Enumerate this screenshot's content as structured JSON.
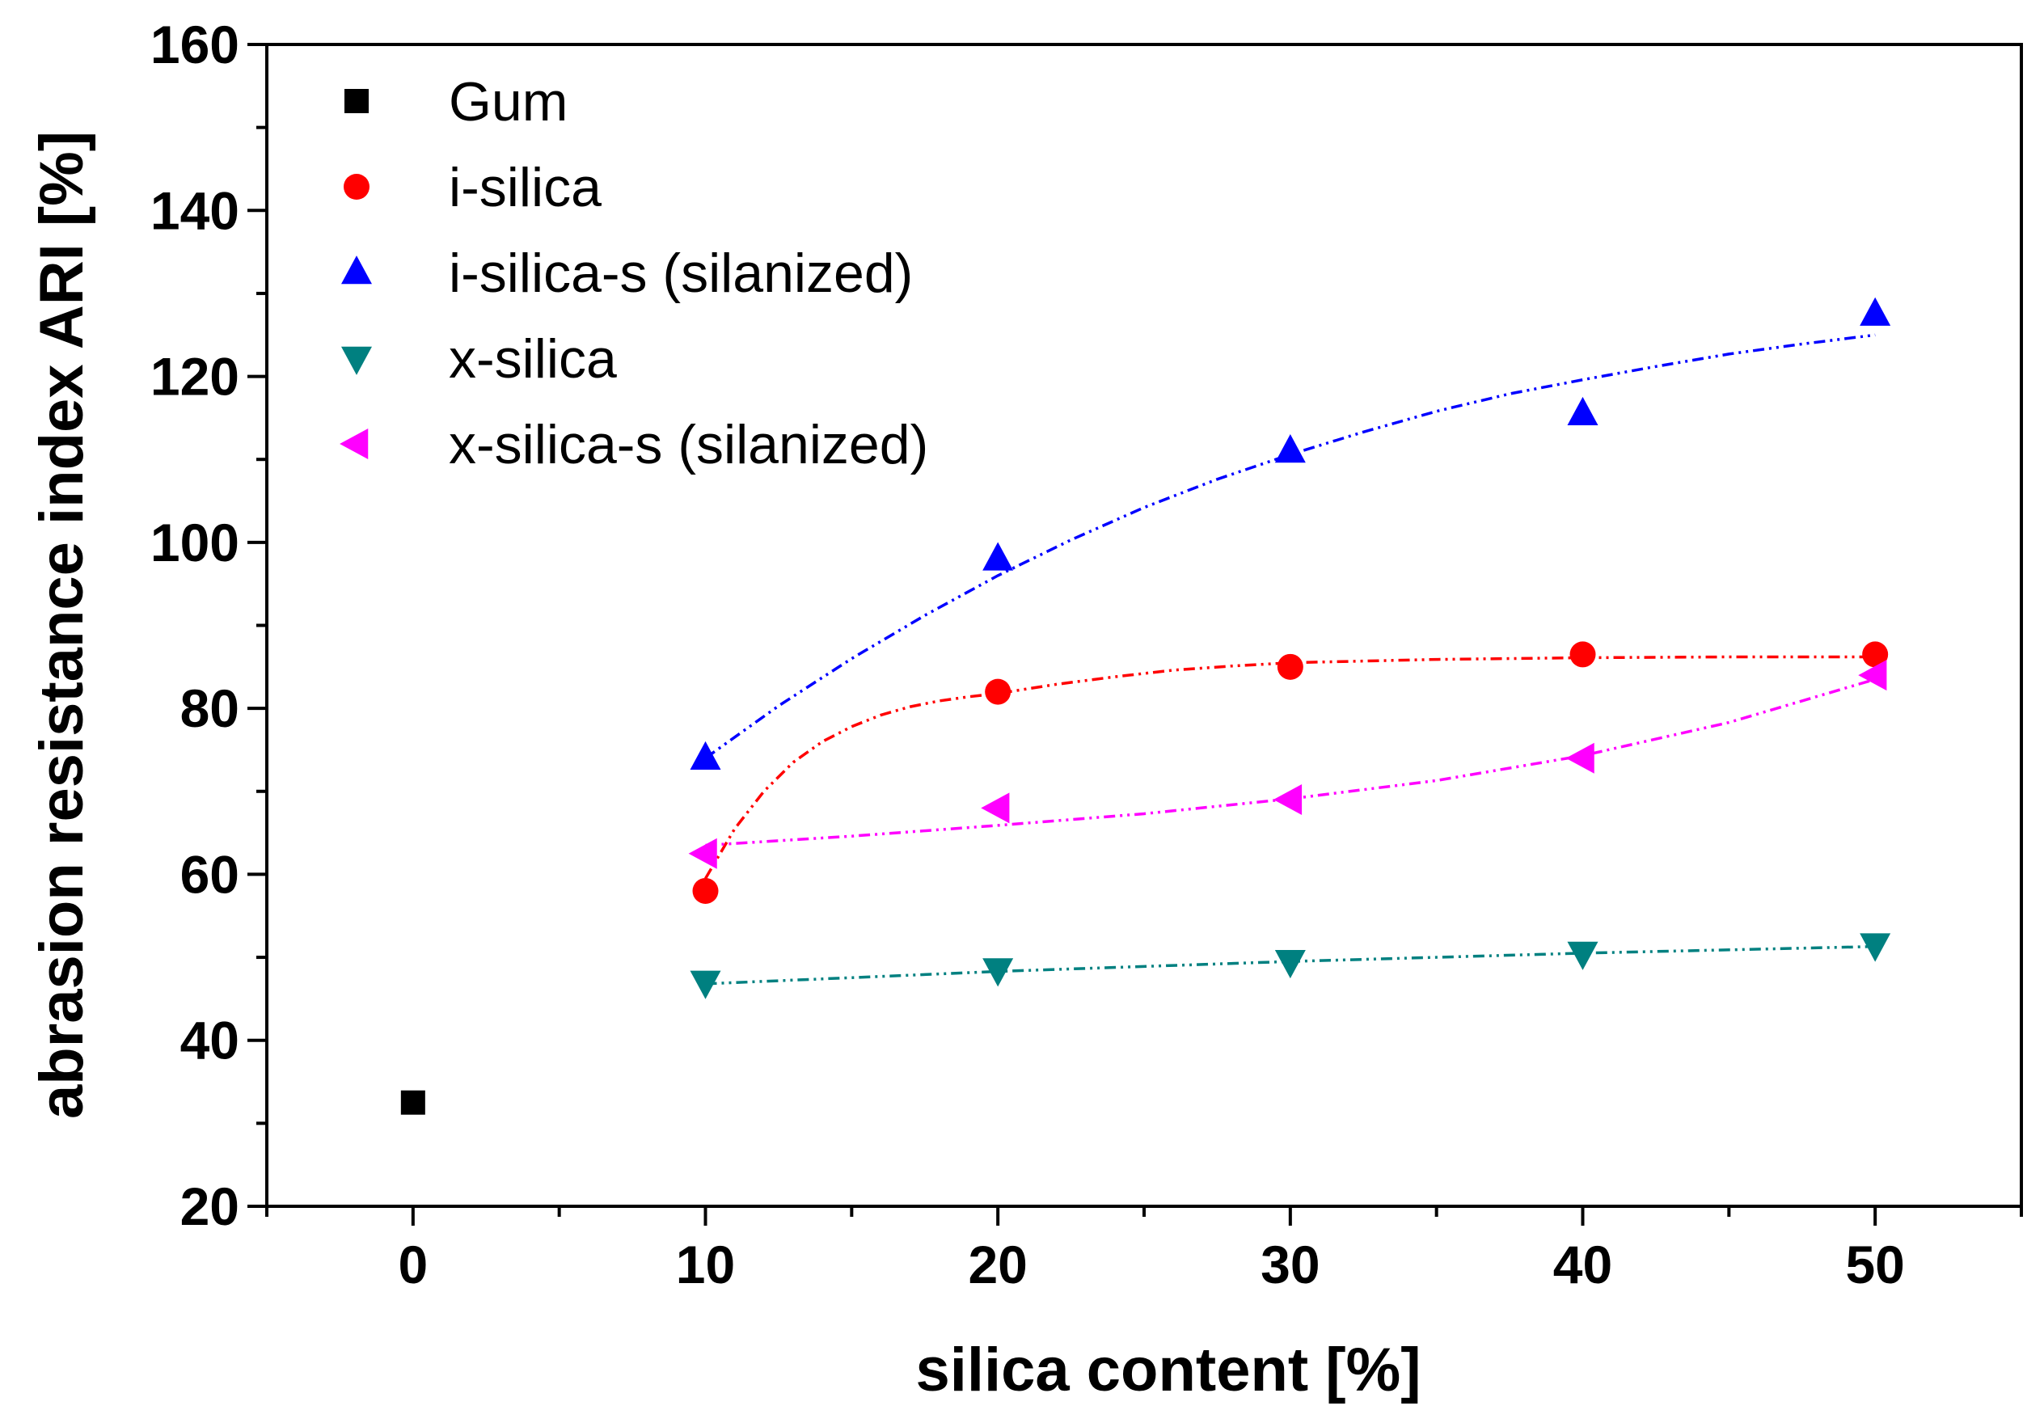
{
  "chart_data": {
    "type": "scatter",
    "title": "",
    "xlabel": "silica content [%]",
    "ylabel": "abrasion resistance index ARI [%]",
    "xlim": [
      -5,
      55
    ],
    "ylim": [
      20,
      160
    ],
    "xticks": [
      0,
      10,
      20,
      30,
      40,
      50
    ],
    "yticks": [
      20,
      40,
      60,
      80,
      100,
      120,
      140,
      160
    ],
    "grid": false,
    "legend_position": "top-left",
    "series": [
      {
        "name": "Gum",
        "color": "#000000",
        "marker": "square",
        "x": [
          0
        ],
        "y": [
          32.5
        ],
        "fit": null
      },
      {
        "name": "i-silica",
        "color": "#ff0000",
        "marker": "circle",
        "x": [
          10,
          20,
          30,
          40,
          50
        ],
        "y": [
          58,
          82,
          85,
          86.5,
          86.5
        ],
        "fit": {
          "x": [
            10,
            11,
            12,
            13,
            14,
            15,
            16,
            17,
            18,
            19,
            20,
            22,
            24,
            26,
            28,
            30,
            35,
            40,
            45,
            50
          ],
          "y": [
            59.5,
            65.5,
            70.0,
            73.5,
            76.0,
            77.8,
            79.2,
            80.2,
            80.9,
            81.4,
            81.8,
            82.9,
            83.8,
            84.6,
            85.1,
            85.5,
            85.9,
            86.1,
            86.2,
            86.2
          ]
        }
      },
      {
        "name": "i-silica-s (silanized)",
        "color": "#0000ff",
        "marker": "triangle-up",
        "x": [
          10,
          20,
          30,
          40,
          50
        ],
        "y": [
          74,
          98,
          111,
          115.5,
          127.5
        ],
        "fit": {
          "x": [
            10,
            12.5,
            15,
            17.5,
            20,
            22.5,
            25,
            27.5,
            30,
            32.5,
            35,
            37.5,
            40,
            42.5,
            45,
            47.5,
            50
          ],
          "y": [
            74,
            80.3,
            86,
            91.2,
            96,
            100.3,
            104.2,
            107.6,
            110.6,
            113.3,
            115.8,
            117.9,
            119.6,
            121.2,
            122.7,
            123.9,
            125
          ]
        }
      },
      {
        "name": "x-silica",
        "color": "#008080",
        "marker": "triangle-down",
        "x": [
          10,
          20,
          30,
          40,
          50
        ],
        "y": [
          47,
          48.5,
          49.5,
          50.5,
          51.5
        ],
        "fit": {
          "x": [
            10,
            20,
            30,
            40,
            50
          ],
          "y": [
            46.8,
            48.3,
            49.5,
            50.5,
            51.3
          ]
        }
      },
      {
        "name": "x-silica-s (silanized)",
        "color": "#ff00ff",
        "marker": "triangle-left",
        "x": [
          10,
          20,
          30,
          40,
          50
        ],
        "y": [
          62.5,
          68,
          69,
          74,
          84
        ],
        "fit": {
          "x": [
            10,
            15,
            20,
            25,
            30,
            35,
            40,
            45,
            50
          ],
          "y": [
            63.5,
            64.6,
            65.9,
            67.3,
            69.1,
            71.3,
            74.3,
            78.3,
            83.5
          ]
        }
      }
    ]
  }
}
